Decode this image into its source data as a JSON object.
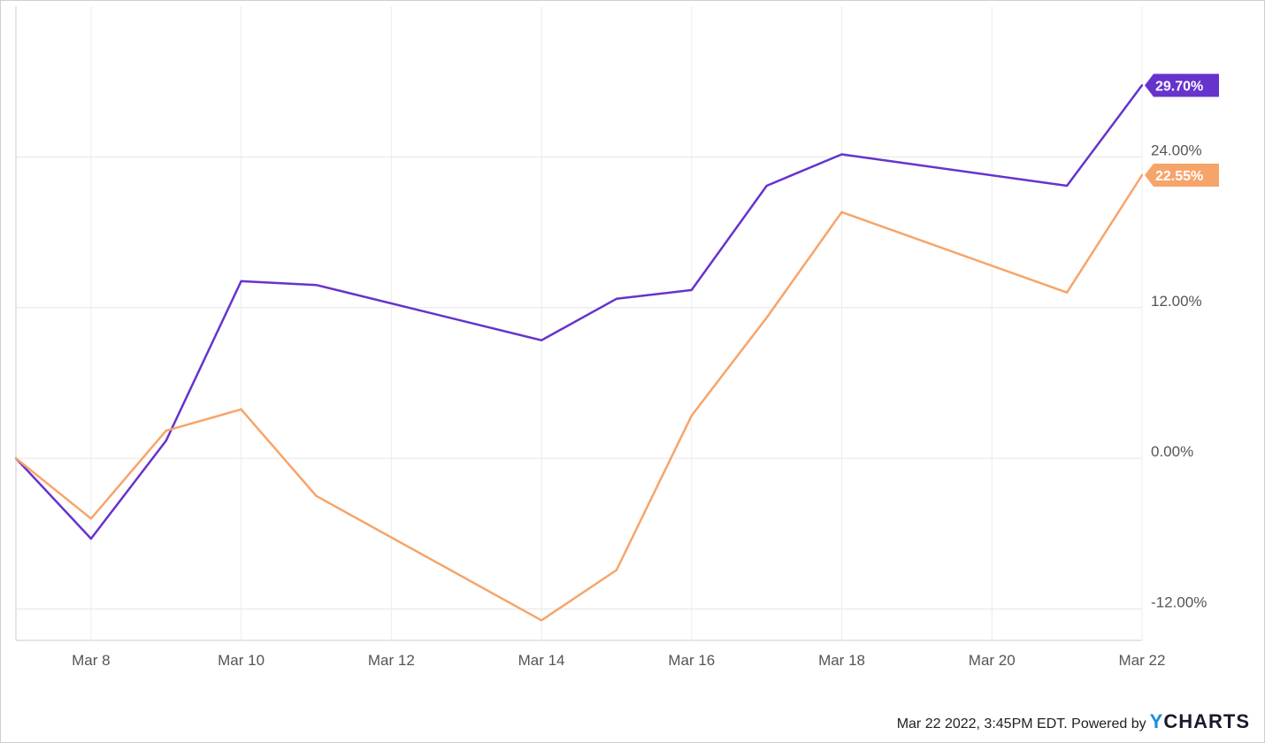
{
  "chart_data": {
    "type": "line",
    "x": [
      "2022-03-07",
      "2022-03-08",
      "2022-03-09",
      "2022-03-10",
      "2022-03-11",
      "2022-03-14",
      "2022-03-15",
      "2022-03-16",
      "2022-03-17",
      "2022-03-18",
      "2022-03-21",
      "2022-03-22"
    ],
    "x_ticks": [
      "Mar 8",
      "Mar 10",
      "Mar 12",
      "Mar 14",
      "Mar 16",
      "Mar 18",
      "Mar 20",
      "Mar 22"
    ],
    "y_ticks": [
      "24.00%",
      "12.00%",
      "0.00%",
      "-12.00%"
    ],
    "ylim": [
      -14.5,
      36
    ],
    "y_unit": "%",
    "grid": true,
    "series": [
      {
        "color": "#6633cc",
        "values": [
          0.0,
          -6.4,
          1.4,
          14.1,
          13.8,
          9.4,
          12.7,
          13.4,
          21.7,
          24.2,
          21.7,
          29.7
        ],
        "end_label": "29.70%"
      },
      {
        "color": "#f7a46a",
        "values": [
          0.0,
          -4.8,
          2.2,
          3.9,
          -3.0,
          -12.9,
          -8.9,
          3.4,
          11.2,
          19.6,
          13.2,
          22.55
        ],
        "end_label": "22.55%"
      }
    ]
  },
  "footer": {
    "timestamp": "Mar 22 2022, 3:45PM EDT.",
    "powered_by": "Powered by",
    "brand_y": "Y",
    "brand_rest": "CHARTS"
  }
}
